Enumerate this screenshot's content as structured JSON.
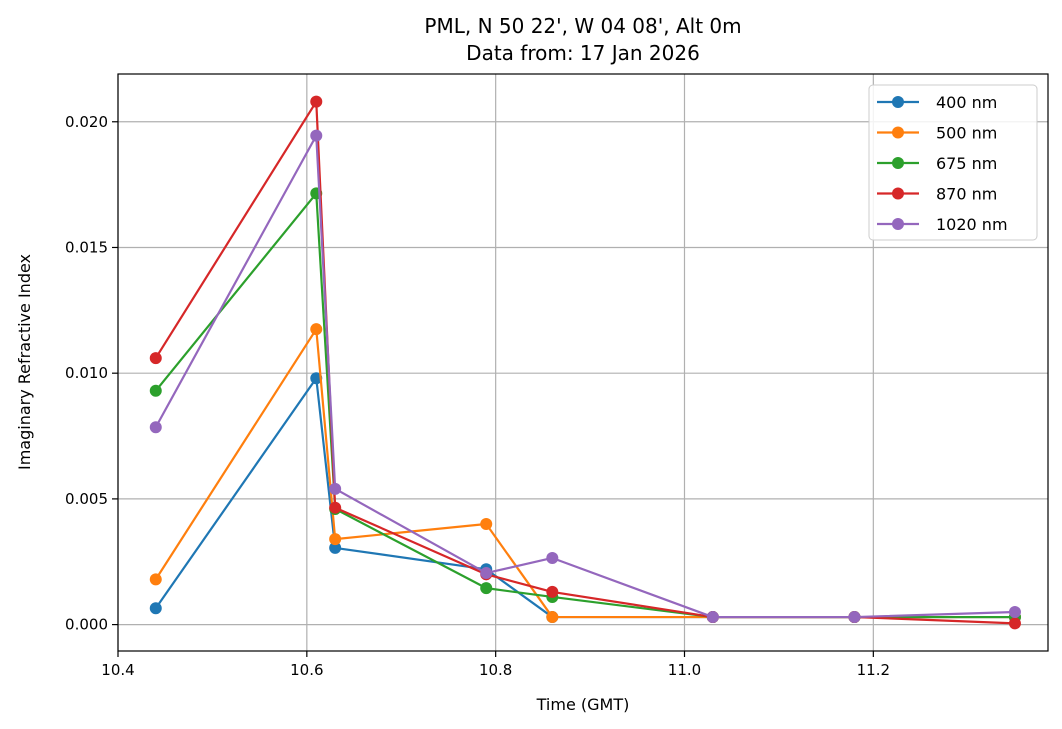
{
  "chart_data": {
    "type": "line",
    "title": "PML, N 50 22', W 04 08', Alt 0m",
    "subtitle": "Data from: 17 Jan 2026",
    "xlabel": "Time (GMT)",
    "ylabel": "Imaginary Refractive Index",
    "xlim": [
      10.4,
      11.385
    ],
    "ylim": [
      -0.00105,
      0.0219
    ],
    "xticks": [
      10.4,
      10.6,
      10.8,
      11.0,
      11.2
    ],
    "xtick_labels": [
      "10.4",
      "10.6",
      "10.8",
      "11.0",
      "11.2"
    ],
    "yticks": [
      0.0,
      0.005,
      0.01,
      0.015,
      0.02
    ],
    "ytick_labels": [
      "0.000",
      "0.005",
      "0.010",
      "0.015",
      "0.020"
    ],
    "grid": true,
    "legend_position": "top-right",
    "series": [
      {
        "name": "400 nm",
        "color": "#1f77b4",
        "x": [
          10.44,
          10.61,
          10.63,
          10.79,
          10.86,
          11.03,
          11.18,
          11.35
        ],
        "y": [
          0.00065,
          0.0098,
          0.00305,
          0.0022,
          0.0003,
          0.0003,
          0.0003,
          0.0003
        ]
      },
      {
        "name": "500 nm",
        "color": "#ff7f0e",
        "x": [
          10.44,
          10.61,
          10.63,
          10.79,
          10.86,
          11.03,
          11.18,
          11.35
        ],
        "y": [
          0.0018,
          0.01175,
          0.0034,
          0.004,
          0.0003,
          0.0003,
          0.0003,
          0.0003
        ]
      },
      {
        "name": "675 nm",
        "color": "#2ca02c",
        "x": [
          10.44,
          10.61,
          10.63,
          10.79,
          10.86,
          11.03,
          11.18,
          11.35
        ],
        "y": [
          0.0093,
          0.01715,
          0.0046,
          0.00145,
          0.0011,
          0.0003,
          0.0003,
          0.0003
        ]
      },
      {
        "name": "870 nm",
        "color": "#d62728",
        "x": [
          10.44,
          10.61,
          10.63,
          10.79,
          10.86,
          11.03,
          11.18,
          11.35
        ],
        "y": [
          0.0106,
          0.0208,
          0.00465,
          0.002,
          0.0013,
          0.0003,
          0.0003,
          5e-05
        ]
      },
      {
        "name": "1020 nm",
        "color": "#9467bd",
        "x": [
          10.44,
          10.61,
          10.63,
          10.79,
          10.86,
          11.03,
          11.18,
          11.35
        ],
        "y": [
          0.00785,
          0.01945,
          0.0054,
          0.00205,
          0.00265,
          0.0003,
          0.0003,
          0.0005
        ]
      }
    ]
  }
}
